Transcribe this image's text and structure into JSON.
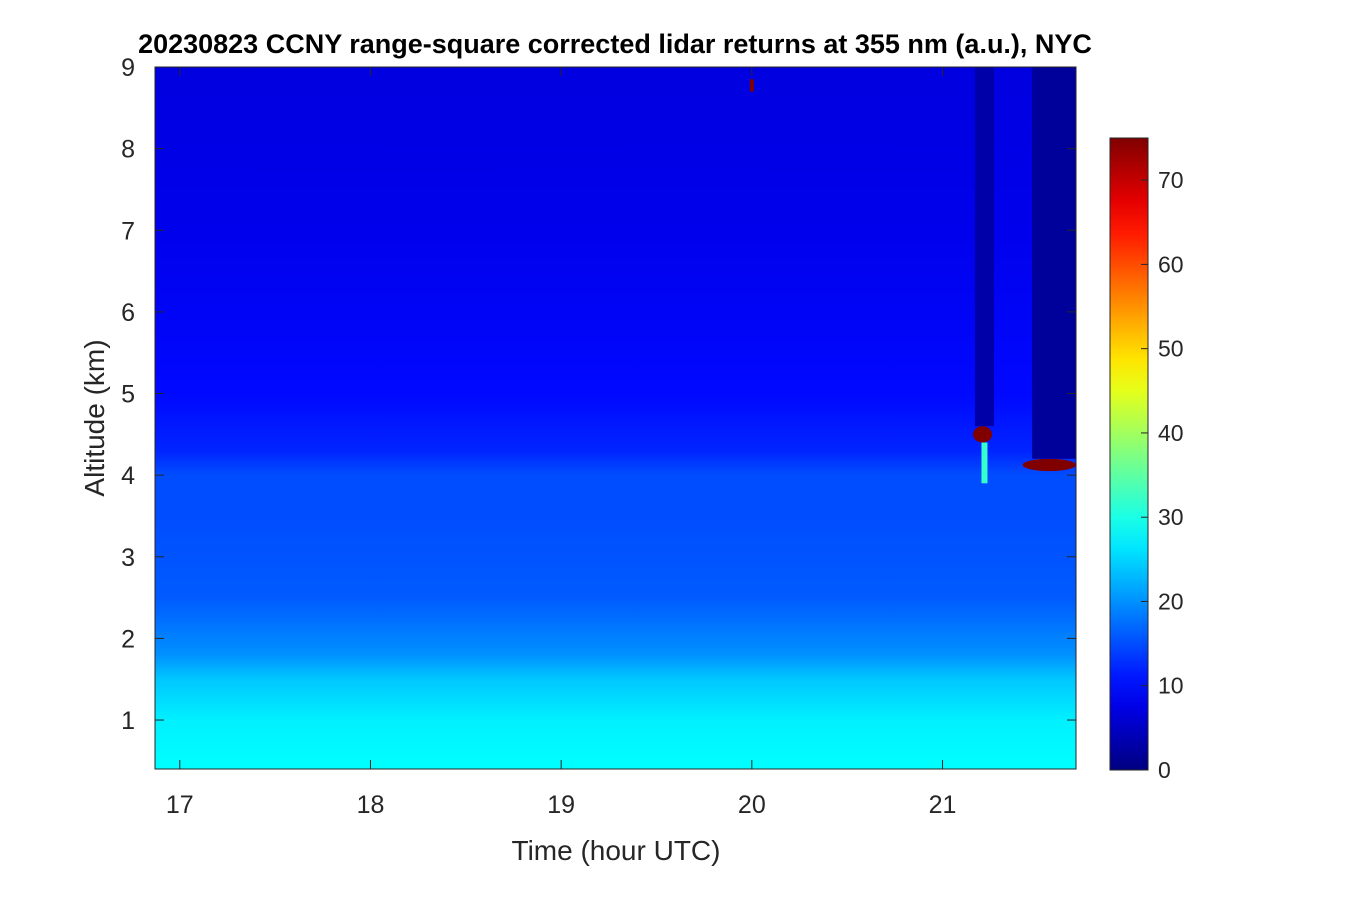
{
  "chart_data": {
    "type": "heatmap",
    "title": "20230823 CCNY range-square corrected lidar returns at 355 nm (a.u.), NYC",
    "xlabel": "Time (hour UTC)",
    "ylabel": "Altitude (km)",
    "xlim": [
      16.87,
      21.7
    ],
    "ylim": [
      0.4,
      9.0
    ],
    "x_ticks": [
      "17",
      "18",
      "19",
      "20",
      "21"
    ],
    "y_ticks": [
      "1",
      "2",
      "3",
      "4",
      "5",
      "6",
      "7",
      "8",
      "9"
    ],
    "colorbar": {
      "colormap": "jet",
      "range": [
        0,
        75
      ],
      "ticks": [
        "0",
        "10",
        "20",
        "30",
        "40",
        "50",
        "60",
        "70"
      ]
    },
    "background_profile": [
      {
        "altitude_km": 0.5,
        "value": 28
      },
      {
        "altitude_km": 1.0,
        "value": 27
      },
      {
        "altitude_km": 1.5,
        "value": 24
      },
      {
        "altitude_km": 1.8,
        "value": 20
      },
      {
        "altitude_km": 2.5,
        "value": 16
      },
      {
        "altitude_km": 3.5,
        "value": 15
      },
      {
        "altitude_km": 4.0,
        "value": 15
      },
      {
        "altitude_km": 4.3,
        "value": 12
      },
      {
        "altitude_km": 5.0,
        "value": 10
      },
      {
        "altitude_km": 7.0,
        "value": 8
      },
      {
        "altitude_km": 9.0,
        "value": 7
      }
    ],
    "features": [
      {
        "name": "cloud",
        "time_start": 21.16,
        "time_end": 21.26,
        "alt_bottom": 4.4,
        "alt_top": 4.6,
        "value": 75
      },
      {
        "name": "cloud",
        "time_start": 21.42,
        "time_end": 21.7,
        "alt_bottom": 4.05,
        "alt_top": 4.2,
        "value": 75
      },
      {
        "name": "cloud-trail",
        "time": 21.22,
        "alt_bottom": 3.9,
        "alt_top": 4.4,
        "value": 32
      },
      {
        "name": "cloud",
        "time": 20.0,
        "alt_bottom": 8.7,
        "alt_top": 8.85,
        "value": 75
      },
      {
        "name": "attenuated-column",
        "time_start": 21.17,
        "time_end": 21.27,
        "alt_bottom": 4.6,
        "alt_top": 9.0,
        "value": 3
      },
      {
        "name": "attenuated-column",
        "time_start": 21.47,
        "time_end": 21.7,
        "alt_bottom": 4.2,
        "alt_top": 9.0,
        "value": 2
      }
    ]
  }
}
